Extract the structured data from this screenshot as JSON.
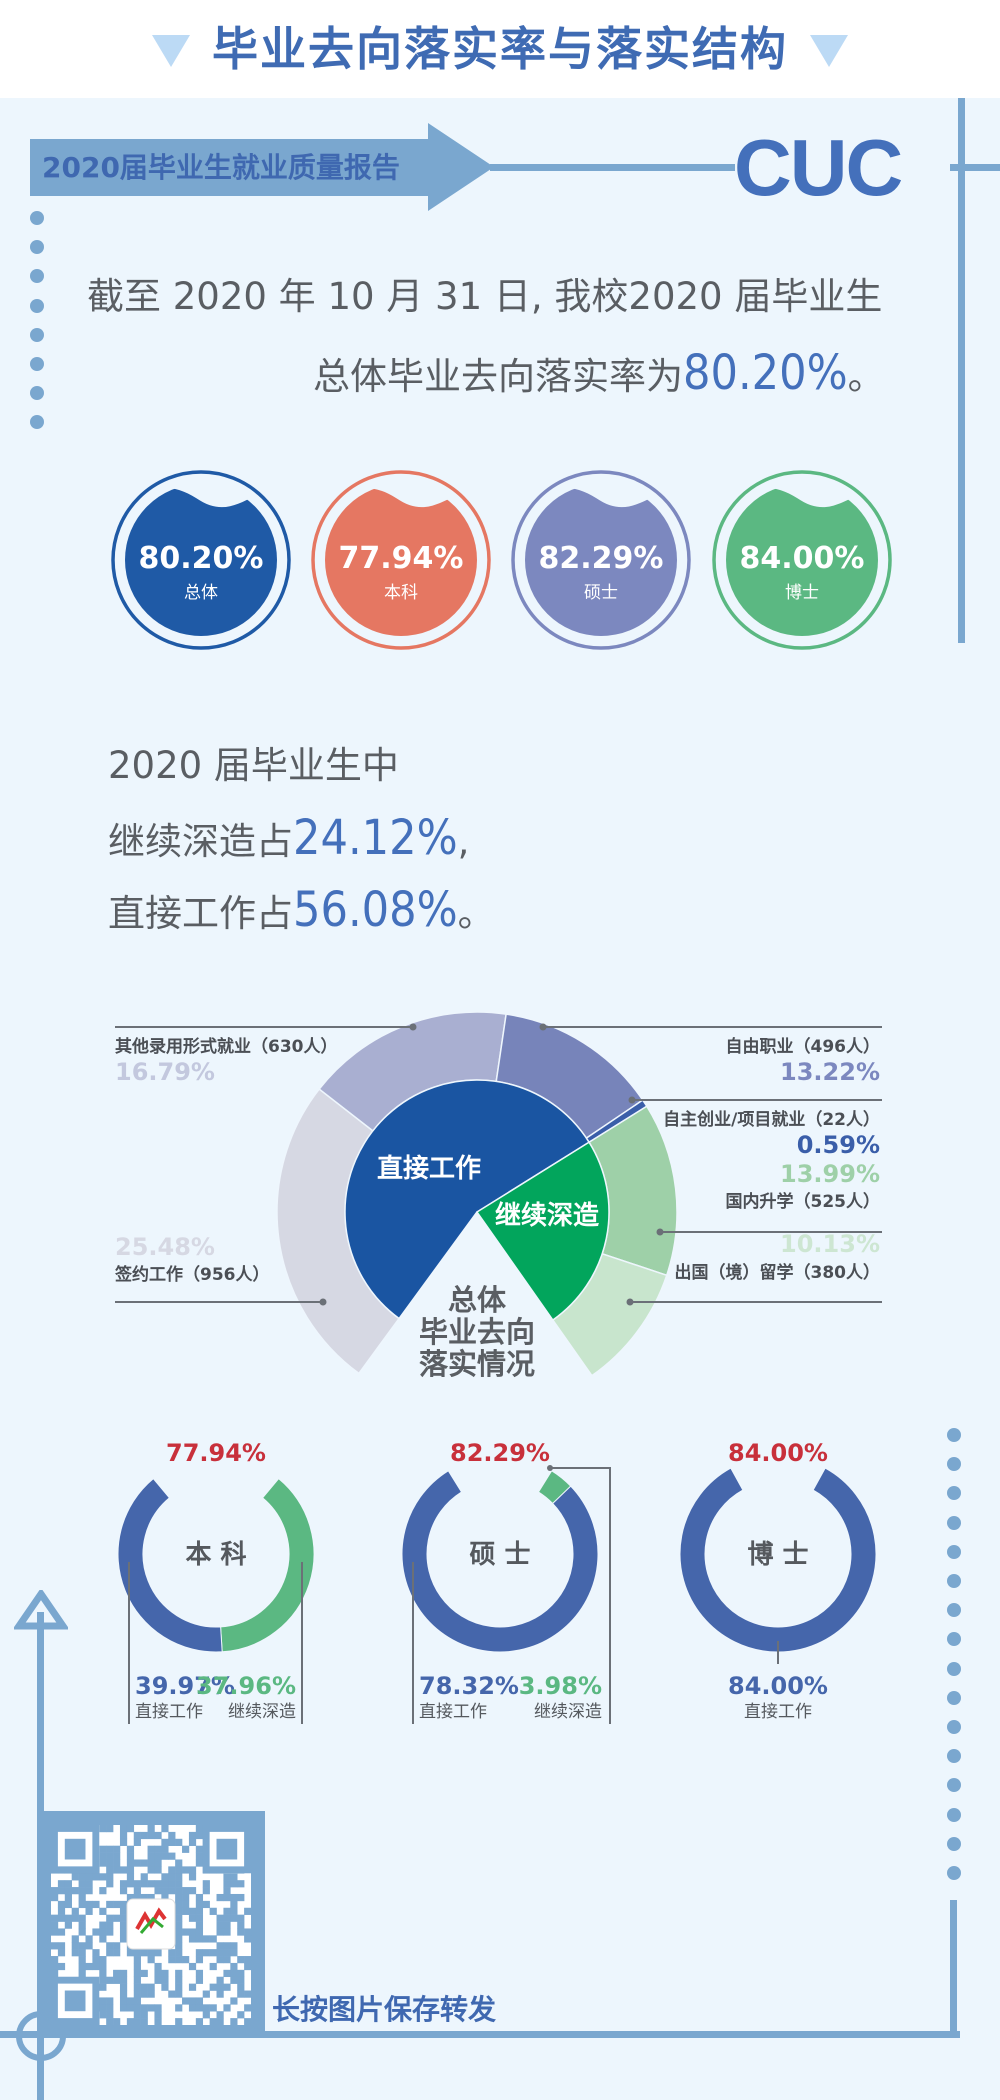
{
  "header": {
    "title": "毕业去向落实率与落实结构"
  },
  "banner": {
    "label": "2020届毕业生就业质量报告",
    "logo": "CUC"
  },
  "intro": {
    "line1": "截至 2020 年 10 月 31 日, 我校2020 届毕业生",
    "line2_prefix": "总体毕业去向落实率为",
    "line2_value": "80.20%",
    "line2_suffix": "。"
  },
  "bubbles": [
    {
      "value": "80.20%",
      "label": "总体",
      "color": "#1f5aa6",
      "ring": "#1f5aa6"
    },
    {
      "value": "77.94%",
      "label": "本科",
      "color": "#e57762",
      "ring": "#e57762"
    },
    {
      "value": "82.29%",
      "label": "硕士",
      "color": "#7c88bf",
      "ring": "#7c88bf"
    },
    {
      "value": "84.00%",
      "label": "博士",
      "color": "#5bb882",
      "ring": "#5bb882"
    }
  ],
  "summary": {
    "line1": "2020 届毕业生中",
    "line2_prefix": "继续深造占",
    "line2_value": "24.12%",
    "line2_suffix": ",",
    "line3_prefix": "直接工作占",
    "line3_value": "56.08%",
    "line3_suffix": "。"
  },
  "qr": {
    "caption": "长按图片保存转发"
  },
  "chart_data": [
    {
      "type": "pie",
      "title": "总体毕业去向落实情况",
      "title_lines": [
        "总体",
        "毕业去向",
        "落实情况"
      ],
      "inner": {
        "categories": [
          "直接工作",
          "继续深造"
        ],
        "values": [
          56.08,
          24.12
        ],
        "colors": [
          "#1a55a2",
          "#02a55c"
        ]
      },
      "outer": {
        "categories": [
          "签约工作",
          "其他录用形式就业",
          "自由职业",
          "自主创业/项目就业",
          "国内升学",
          "出国（境）留学"
        ],
        "counts": [
          956,
          630,
          496,
          22,
          525,
          380
        ],
        "values": [
          25.48,
          16.79,
          13.22,
          0.59,
          13.99,
          10.13
        ],
        "colors": [
          "#d6d8e3",
          "#a9afd1",
          "#7784ba",
          "#3a5ea9",
          "#9ed0a8",
          "#c8e5cd"
        ],
        "labels": [
          "签约工作（956人）",
          "其他录用形式就业（630人）",
          "自由职业（496人）",
          "自主创业/项目就业（22人）",
          "国内升学（525人）",
          "出国（境）留学（380人）"
        ],
        "pct_labels": [
          "25.48%",
          "16.79%",
          "13.22%",
          "0.59%",
          "13.99%",
          "10.13%"
        ],
        "pct_colors": [
          "#d6d8e3",
          "#c3c8de",
          "#7c88bf",
          "#3a5ea9",
          "#9ed0a8",
          "#cde6d2"
        ]
      },
      "total": 80.2
    },
    {
      "type": "pie",
      "title": "本科",
      "total_label": "77.94%",
      "categories": [
        "直接工作",
        "继续深造"
      ],
      "values": [
        39.97,
        37.96
      ],
      "colors": [
        "#4566ab",
        "#5bb882"
      ],
      "pct_labels": [
        "39.97%",
        "37.96%"
      ]
    },
    {
      "type": "pie",
      "title": "硕士",
      "total_label": "82.29%",
      "categories": [
        "直接工作",
        "继续深造"
      ],
      "values": [
        78.32,
        3.98
      ],
      "colors": [
        "#4566ab",
        "#5bb882"
      ],
      "pct_labels": [
        "78.32%",
        "3.98%"
      ]
    },
    {
      "type": "pie",
      "title": "博士",
      "total_label": "84.00%",
      "categories": [
        "直接工作"
      ],
      "values": [
        84.0
      ],
      "colors": [
        "#4566ab"
      ],
      "pct_labels": [
        "84.00%"
      ]
    }
  ]
}
